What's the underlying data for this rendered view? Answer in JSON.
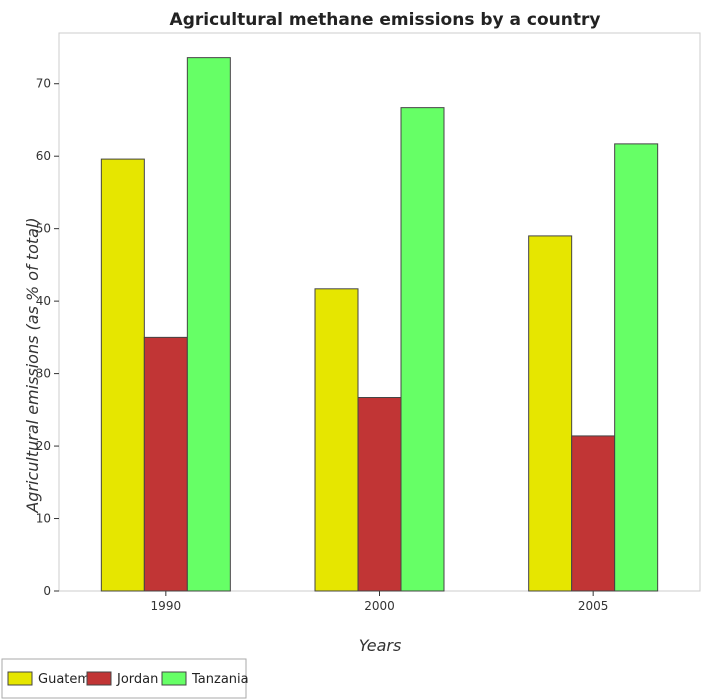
{
  "chart_data": {
    "type": "bar",
    "title": "Agricultural methane emissions by a country",
    "xlabel": "Years",
    "ylabel": "Agricultural emissions (as % of total)",
    "categories": [
      "1990",
      "2000",
      "2005"
    ],
    "series": [
      {
        "name": "Guatemala",
        "color": "#e6e600",
        "values": [
          59.6,
          41.7,
          49.0
        ]
      },
      {
        "name": "Jordan",
        "color": "#c13535",
        "values": [
          35.0,
          26.7,
          21.4
        ]
      },
      {
        "name": "Tanzania",
        "color": "#66ff66",
        "values": [
          73.6,
          66.7,
          61.7
        ]
      }
    ],
    "ylim": [
      0,
      77
    ],
    "yticks": [
      0,
      10,
      20,
      30,
      40,
      50,
      60,
      70
    ],
    "grid": false,
    "legend": "bottom-left"
  }
}
